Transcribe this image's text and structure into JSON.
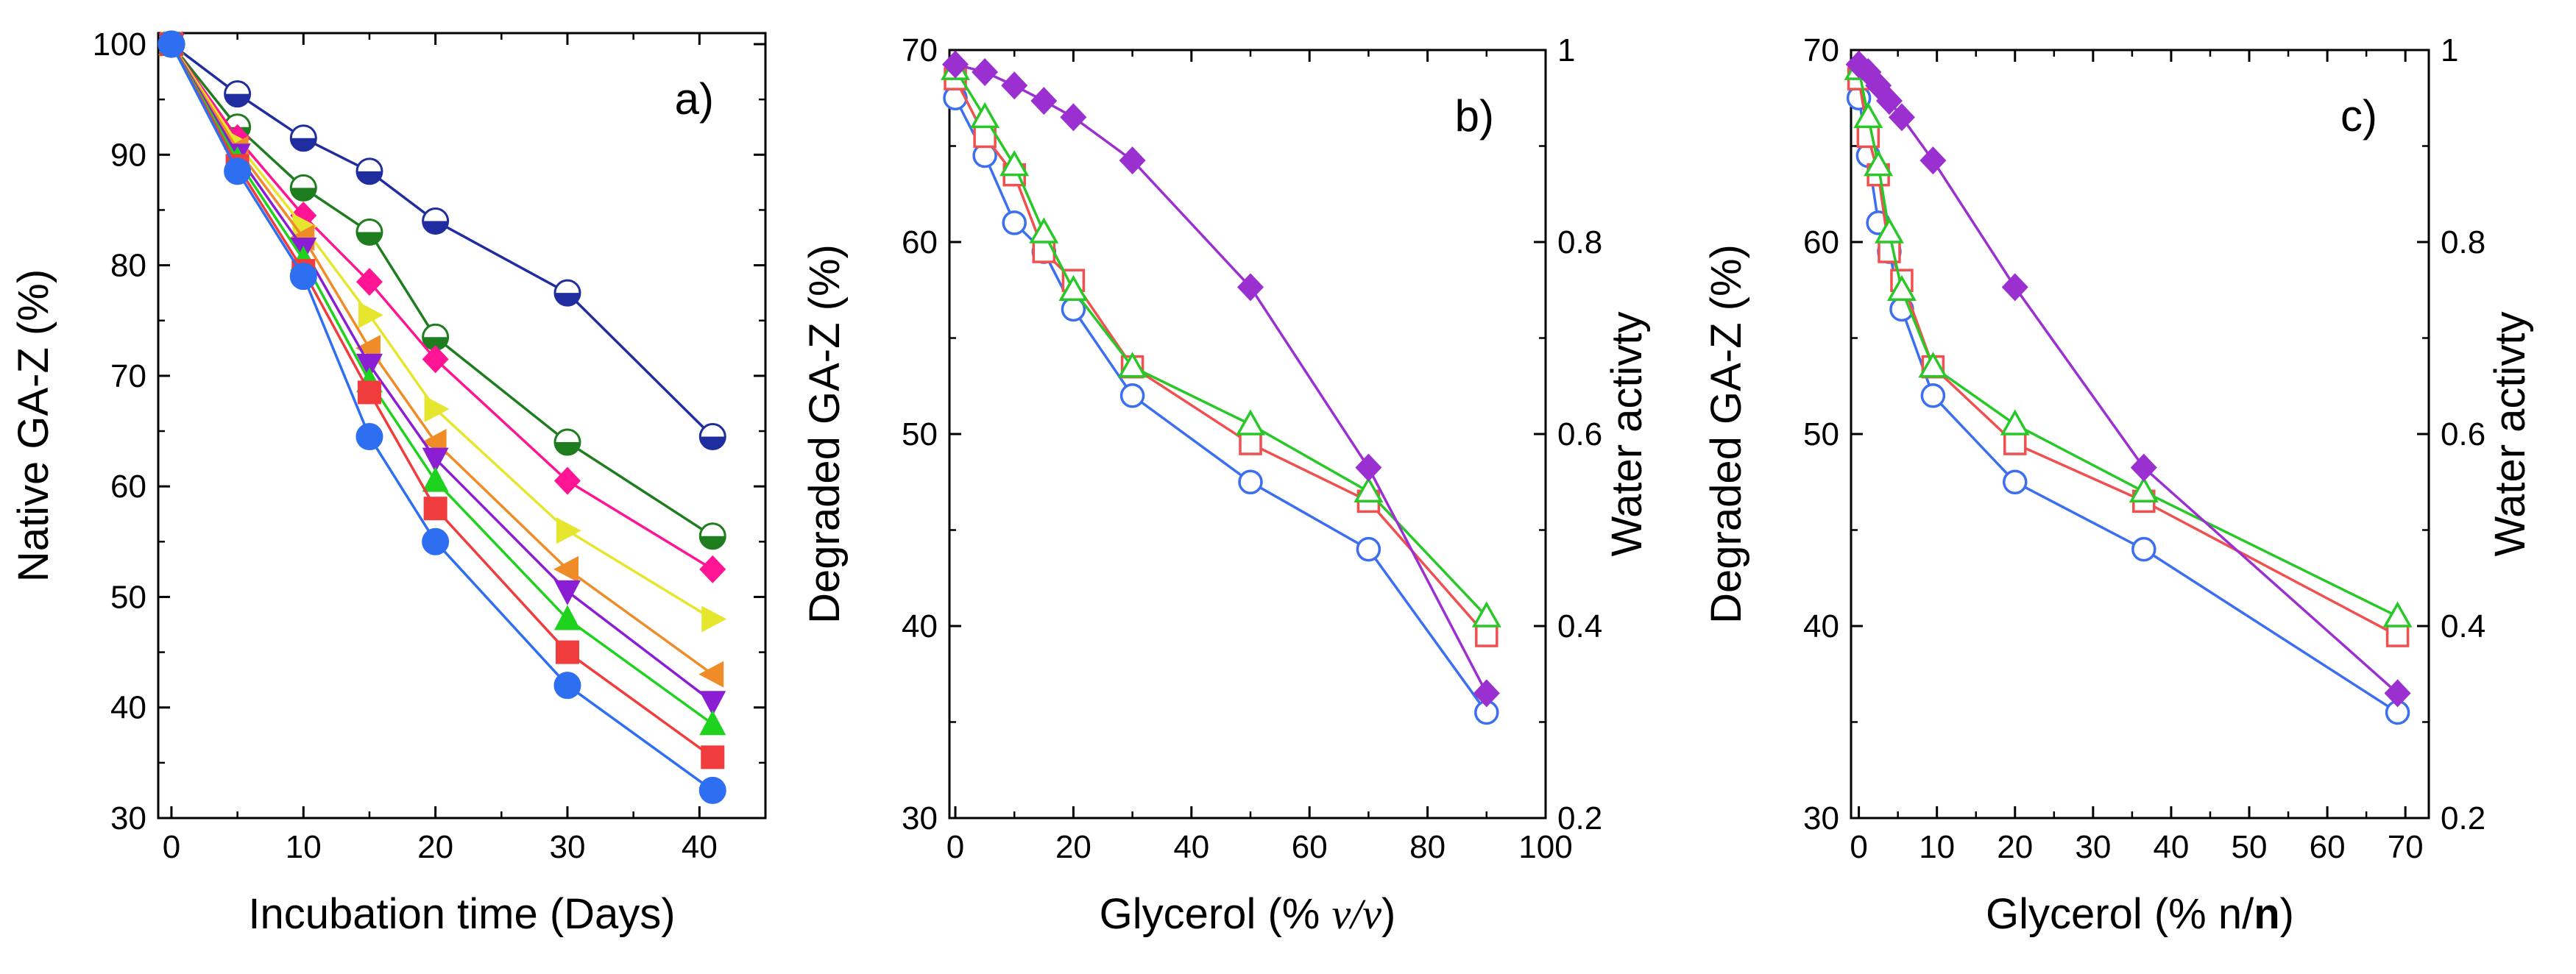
{
  "chart_data": [
    {
      "type": "line",
      "panel": "a)",
      "xlabel": "Incubation time (Days)",
      "ylabel": "Native GA-Z (%)",
      "xlim": [
        -1,
        45
      ],
      "ylim": [
        30,
        101
      ],
      "xticks": [
        0,
        10,
        20,
        30,
        40
      ],
      "yticks": [
        30,
        40,
        50,
        60,
        70,
        80,
        90,
        100
      ],
      "series": [
        {
          "name": "navy",
          "color": "#1f2d9e",
          "marker": "circle-half",
          "x": [
            0,
            5,
            10,
            15,
            20,
            30,
            41
          ],
          "y": [
            100,
            95.5,
            91.5,
            88.5,
            84,
            77.5,
            64.5
          ]
        },
        {
          "name": "dark green",
          "color": "#1e7d1e",
          "marker": "circle-half",
          "x": [
            0,
            5,
            10,
            15,
            20,
            30,
            41
          ],
          "y": [
            100,
            92.5,
            87,
            83,
            73.5,
            64,
            55.5
          ]
        },
        {
          "name": "magenta",
          "color": "#ff1493",
          "marker": "diamond",
          "x": [
            0,
            5,
            10,
            15,
            20,
            30,
            41
          ],
          "y": [
            100,
            91.5,
            84.5,
            78.5,
            71.5,
            60.5,
            52.5
          ]
        },
        {
          "name": "yellow",
          "color": "#e6e62e",
          "marker": "triangle-right",
          "x": [
            0,
            5,
            10,
            15,
            20,
            30,
            41
          ],
          "y": [
            100,
            91,
            83.5,
            75.5,
            67,
            56,
            48
          ]
        },
        {
          "name": "orange",
          "color": "#f08c28",
          "marker": "triangle-left",
          "x": [
            0,
            5,
            10,
            15,
            20,
            30,
            41
          ],
          "y": [
            100,
            90.5,
            82.5,
            72.5,
            64,
            52.5,
            43
          ]
        },
        {
          "name": "purple",
          "color": "#8b1ed2",
          "marker": "triangle-down",
          "x": [
            0,
            5,
            10,
            15,
            20,
            30,
            41
          ],
          "y": [
            100,
            90,
            81.5,
            71,
            62.5,
            50.5,
            40.5
          ]
        },
        {
          "name": "green",
          "color": "#1ed21e",
          "marker": "triangle-up",
          "x": [
            0,
            5,
            10,
            15,
            20,
            30,
            41
          ],
          "y": [
            100,
            89.5,
            80.5,
            69.5,
            60.5,
            48,
            38.5
          ]
        },
        {
          "name": "red",
          "color": "#f03c3c",
          "marker": "square",
          "x": [
            0,
            5,
            10,
            15,
            20,
            30,
            41
          ],
          "y": [
            100,
            89,
            79.5,
            68.5,
            58,
            45,
            35.5
          ]
        },
        {
          "name": "blue",
          "color": "#2e6ef0",
          "marker": "circle",
          "x": [
            0,
            5,
            10,
            15,
            20,
            30,
            41
          ],
          "y": [
            100,
            88.5,
            79,
            64.5,
            55,
            42,
            32.5
          ]
        }
      ]
    },
    {
      "type": "line",
      "panel": "b)",
      "xlabel_parts": [
        "Glycerol (% ",
        "v/v",
        ")"
      ],
      "ylabel": "Degraded GA-Z (%)",
      "ylabel_right": "Water activty",
      "xlim": [
        -1,
        100
      ],
      "ylim": [
        30,
        70
      ],
      "ylim_right": [
        0.2,
        1.0
      ],
      "xticks": [
        0,
        20,
        40,
        60,
        80,
        100
      ],
      "yticks": [
        30,
        40,
        50,
        60,
        70
      ],
      "yticks_right": [
        0.2,
        0.4,
        0.6,
        0.8,
        1.0
      ],
      "series": [
        {
          "name": "blue circles",
          "color": "#3c6ef0",
          "marker": "circle-open",
          "axis": "left",
          "x": [
            0,
            5,
            10,
            15,
            20,
            30,
            50,
            70,
            90
          ],
          "y": [
            67.5,
            64.5,
            61,
            59.5,
            56.5,
            52,
            47.5,
            44,
            35.5
          ]
        },
        {
          "name": "red squares",
          "color": "#f05050",
          "marker": "square-open",
          "axis": "left",
          "x": [
            0,
            5,
            10,
            15,
            20,
            30,
            50,
            70,
            90
          ],
          "y": [
            68.5,
            65.5,
            63.5,
            59.5,
            58,
            53.5,
            49.5,
            46.5,
            39.5
          ]
        },
        {
          "name": "green triangles",
          "color": "#28c828",
          "marker": "triangle-open",
          "axis": "left",
          "x": [
            0,
            5,
            10,
            15,
            20,
            30,
            50,
            70,
            90
          ],
          "y": [
            69,
            66.5,
            64,
            60.5,
            57.5,
            53.5,
            50.5,
            47,
            40.5
          ]
        },
        {
          "name": "water activity",
          "color": "#9b30d0",
          "marker": "diamond",
          "axis": "right",
          "x": [
            0,
            5,
            10,
            15,
            20,
            30,
            50,
            70,
            90
          ],
          "y": [
            0.985,
            0.977,
            0.963,
            0.947,
            0.93,
            0.885,
            0.753,
            0.565,
            0.33
          ]
        }
      ]
    },
    {
      "type": "line",
      "panel": "c)",
      "xlabel_parts": [
        "Glycerol (% n/",
        "n",
        ")"
      ],
      "ylabel": "Degraded GA-Z (%)",
      "ylabel_right": "Water activty",
      "xlim": [
        -1,
        73
      ],
      "ylim": [
        30,
        70
      ],
      "ylim_right": [
        0.2,
        1.0
      ],
      "xticks": [
        0,
        10,
        20,
        30,
        40,
        50,
        60,
        70
      ],
      "yticks": [
        30,
        40,
        50,
        60,
        70
      ],
      "yticks_right": [
        0.2,
        0.4,
        0.6,
        0.8,
        1.0
      ],
      "series": [
        {
          "name": "blue circles",
          "color": "#3c6ef0",
          "marker": "circle-open",
          "axis": "left",
          "x": [
            0,
            1.2,
            2.5,
            3.9,
            5.5,
            9.5,
            20,
            36.5,
            69
          ],
          "y": [
            67.5,
            64.5,
            61,
            59.5,
            56.5,
            52,
            47.5,
            44,
            35.5
          ]
        },
        {
          "name": "red squares",
          "color": "#f05050",
          "marker": "square-open",
          "axis": "left",
          "x": [
            0,
            1.2,
            2.5,
            3.9,
            5.5,
            9.5,
            20,
            36.5,
            69
          ],
          "y": [
            68.5,
            65.5,
            63.5,
            59.5,
            58,
            53.5,
            49.5,
            46.5,
            39.5
          ]
        },
        {
          "name": "green triangles",
          "color": "#28c828",
          "marker": "triangle-open",
          "axis": "left",
          "x": [
            0,
            1.2,
            2.5,
            3.9,
            5.5,
            9.5,
            20,
            36.5,
            69
          ],
          "y": [
            69,
            66.5,
            64,
            60.5,
            57.5,
            53.5,
            50.5,
            47,
            40.5
          ]
        },
        {
          "name": "water activity",
          "color": "#9b30d0",
          "marker": "diamond",
          "axis": "right",
          "x": [
            0,
            1.2,
            2.5,
            3.9,
            5.5,
            9.5,
            20,
            36.5,
            69
          ],
          "y": [
            0.985,
            0.977,
            0.963,
            0.947,
            0.93,
            0.885,
            0.753,
            0.565,
            0.33
          ]
        }
      ]
    }
  ]
}
